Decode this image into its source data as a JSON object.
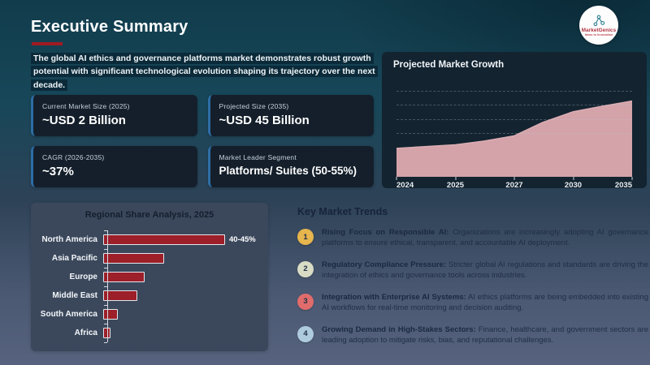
{
  "header": {
    "title": "Executive Summary",
    "intro": "The global AI ethics and governance platforms market demonstrates robust growth potential with significant technological evolution shaping its trajectory over the next decade."
  },
  "logo": {
    "name": "MarketGenics",
    "tagline": "Ideas to Innovation"
  },
  "accent_colors": {
    "title_underline": "#9e1b23",
    "card_border": "#2e6da4",
    "area_fill": "#d3a3a9",
    "area_line": "#dbaeb3",
    "bar_fill": "#9c1f29"
  },
  "stats": [
    {
      "label": "Current Market Size (2025)",
      "value": "~USD 2 Billion"
    },
    {
      "label": "Projected Size (2035)",
      "value": "~USD 45 Billion"
    },
    {
      "label": "CAGR (2026-2035)",
      "value": "~37%"
    },
    {
      "label": "Market Leader Segment",
      "value": "Platforms/ Suites (50-55%)"
    }
  ],
  "chart_data": [
    {
      "type": "area",
      "title": "Projected Market Growth",
      "x_tick_labels": [
        "2024",
        "2025",
        "2027",
        "2030",
        "2035"
      ],
      "x_tick_positions_pct": [
        0,
        25,
        50,
        75,
        100
      ],
      "points": [
        [
          0,
          32
        ],
        [
          25,
          36
        ],
        [
          37,
          40
        ],
        [
          50,
          46
        ],
        [
          62,
          61
        ],
        [
          75,
          73
        ],
        [
          87,
          79
        ],
        [
          100,
          85
        ]
      ],
      "y_axis": "unlabeled - points are relative height, % of plot area",
      "gridline_tops_pct": [
        4,
        19,
        35,
        51
      ],
      "grid": "dashed horizontal",
      "legend": "none",
      "fill": "#d3a3a9"
    },
    {
      "type": "bar",
      "title": "Regional Share Analysis, 2025",
      "orientation": "horizontal",
      "categories": [
        "North America",
        "Asia Pacific",
        "Europe",
        "Middle East",
        "South America",
        "Africa"
      ],
      "values_pct_of_max": [
        100,
        50,
        34,
        28,
        12,
        6
      ],
      "data_labels": [
        "40-45%",
        "",
        "",
        "",
        "",
        ""
      ],
      "bar_color": "#9c1f29",
      "legend": "none"
    }
  ],
  "trends": {
    "heading": "Key Market Trends",
    "items": [
      {
        "num": "1",
        "color": "#e6b54d",
        "title": "Rising Focus on Responsible AI:",
        "text": "Organizations are increasingly adopting AI governance platforms to ensure ethical, transparent, and accountable AI deployment."
      },
      {
        "num": "2",
        "color": "#d9dcc5",
        "title": "Regulatory Compliance Pressure:",
        "text": "Stricter global AI regulations and standards are driving the integration of ethics and governance tools across industries."
      },
      {
        "num": "3",
        "color": "#e06c6c",
        "title": "Integration with Enterprise AI Systems:",
        "text": "AI ethics platforms are being embedded into existing AI workflows for real-time monitoring and decision auditing."
      },
      {
        "num": "4",
        "color": "#aecbdd",
        "title": "Growing Demand in High-Stakes Sectors:",
        "text": "Finance, healthcare, and government sectors are leading adoption to mitigate risks, bias, and reputational challenges."
      }
    ]
  }
}
